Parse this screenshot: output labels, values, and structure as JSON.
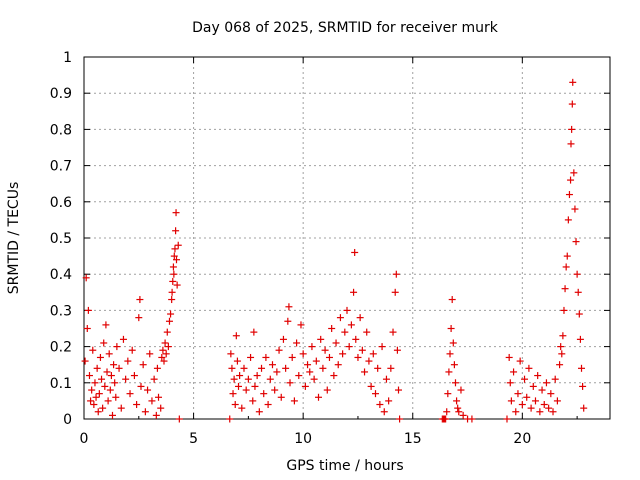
{
  "chart_data": {
    "type": "scatter",
    "title": "Day 068 of 2025, SRMTID for receiver murk",
    "xlabel": "GPS time / hours",
    "ylabel": "SRMTID / TECUs",
    "xlim": [
      0,
      24
    ],
    "ylim": [
      0,
      1
    ],
    "xticks": [
      0,
      5,
      10,
      15,
      20
    ],
    "yticks": [
      0,
      0.1,
      0.2,
      0.3,
      0.4,
      0.5,
      0.6,
      0.7,
      0.8,
      0.9,
      1
    ],
    "grid": true,
    "legend": "none",
    "marker": "plus",
    "color": "#e00000",
    "series": [
      {
        "values": [
          [
            0.05,
            0.16
          ],
          [
            0.1,
            0.39
          ],
          [
            0.15,
            0.25
          ],
          [
            0.2,
            0.3
          ],
          [
            0.25,
            0.12
          ],
          [
            0.3,
            0.05
          ],
          [
            0.35,
            0.08
          ],
          [
            0.4,
            0.19
          ],
          [
            0.45,
            0.04
          ],
          [
            0.5,
            0.1
          ],
          [
            0.55,
            0.06
          ],
          [
            0.6,
            0.14
          ],
          [
            0.65,
            0.02
          ],
          [
            0.7,
            0.07
          ],
          [
            0.75,
            0.17
          ],
          [
            0.8,
            0.11
          ],
          [
            0.85,
            0.03
          ],
          [
            0.9,
            0.21
          ],
          [
            0.95,
            0.09
          ],
          [
            1.0,
            0.26
          ],
          [
            1.05,
            0.13
          ],
          [
            1.1,
            0.05
          ],
          [
            1.15,
            0.18
          ],
          [
            1.2,
            0.08
          ],
          [
            1.25,
            0.12
          ],
          [
            1.3,
            0.01
          ],
          [
            1.35,
            0.15
          ],
          [
            1.4,
            0.1
          ],
          [
            1.45,
            0.06
          ],
          [
            1.5,
            0.2
          ],
          [
            1.6,
            0.14
          ],
          [
            1.7,
            0.03
          ],
          [
            1.8,
            0.22
          ],
          [
            1.9,
            0.11
          ],
          [
            2.0,
            0.16
          ],
          [
            2.1,
            0.07
          ],
          [
            2.2,
            0.19
          ],
          [
            2.3,
            0.12
          ],
          [
            2.4,
            0.04
          ],
          [
            2.5,
            0.28
          ],
          [
            2.55,
            0.33
          ],
          [
            2.6,
            0.09
          ],
          [
            2.7,
            0.15
          ],
          [
            2.8,
            0.02
          ],
          [
            2.9,
            0.08
          ],
          [
            3.0,
            0.18
          ],
          [
            3.1,
            0.05
          ],
          [
            3.2,
            0.11
          ],
          [
            3.3,
            0.01
          ],
          [
            3.35,
            0.14
          ],
          [
            3.4,
            0.06
          ],
          [
            3.5,
            0.03
          ],
          [
            3.55,
            0.17
          ],
          [
            3.6,
            0.19
          ],
          [
            3.65,
            0.16
          ],
          [
            3.7,
            0.21
          ],
          [
            3.75,
            0.18
          ],
          [
            3.8,
            0.24
          ],
          [
            3.85,
            0.2
          ],
          [
            3.9,
            0.27
          ],
          [
            3.95,
            0.29
          ],
          [
            4.0,
            0.33
          ],
          [
            4.02,
            0.35
          ],
          [
            4.05,
            0.38
          ],
          [
            4.08,
            0.42
          ],
          [
            4.1,
            0.4
          ],
          [
            4.12,
            0.45
          ],
          [
            4.15,
            0.47
          ],
          [
            4.18,
            0.52
          ],
          [
            4.2,
            0.57
          ],
          [
            4.22,
            0.44
          ],
          [
            4.25,
            0.37
          ],
          [
            4.3,
            0.48
          ],
          [
            4.35,
            0.0
          ],
          [
            6.65,
            0.0
          ],
          [
            6.7,
            0.18
          ],
          [
            6.75,
            0.14
          ],
          [
            6.8,
            0.07
          ],
          [
            6.85,
            0.11
          ],
          [
            6.9,
            0.04
          ],
          [
            6.95,
            0.23
          ],
          [
            7.0,
            0.16
          ],
          [
            7.05,
            0.09
          ],
          [
            7.1,
            0.12
          ],
          [
            7.2,
            0.03
          ],
          [
            7.3,
            0.14
          ],
          [
            7.4,
            0.08
          ],
          [
            7.5,
            0.11
          ],
          [
            7.6,
            0.17
          ],
          [
            7.7,
            0.05
          ],
          [
            7.75,
            0.24
          ],
          [
            7.8,
            0.09
          ],
          [
            7.9,
            0.12
          ],
          [
            8.0,
            0.02
          ],
          [
            8.1,
            0.14
          ],
          [
            8.2,
            0.07
          ],
          [
            8.3,
            0.17
          ],
          [
            8.4,
            0.04
          ],
          [
            8.5,
            0.11
          ],
          [
            8.6,
            0.15
          ],
          [
            8.7,
            0.08
          ],
          [
            8.8,
            0.13
          ],
          [
            8.9,
            0.19
          ],
          [
            9.0,
            0.06
          ],
          [
            9.1,
            0.22
          ],
          [
            9.2,
            0.14
          ],
          [
            9.3,
            0.27
          ],
          [
            9.35,
            0.31
          ],
          [
            9.4,
            0.1
          ],
          [
            9.5,
            0.17
          ],
          [
            9.6,
            0.05
          ],
          [
            9.7,
            0.21
          ],
          [
            9.8,
            0.12
          ],
          [
            9.9,
            0.26
          ],
          [
            10.0,
            0.18
          ],
          [
            10.1,
            0.09
          ],
          [
            10.2,
            0.15
          ],
          [
            10.3,
            0.13
          ],
          [
            10.4,
            0.2
          ],
          [
            10.5,
            0.11
          ],
          [
            10.6,
            0.16
          ],
          [
            10.7,
            0.06
          ],
          [
            10.8,
            0.22
          ],
          [
            10.9,
            0.14
          ],
          [
            11.0,
            0.19
          ],
          [
            11.1,
            0.08
          ],
          [
            11.2,
            0.17
          ],
          [
            11.3,
            0.25
          ],
          [
            11.4,
            0.12
          ],
          [
            11.5,
            0.21
          ],
          [
            11.6,
            0.15
          ],
          [
            11.7,
            0.28
          ],
          [
            11.8,
            0.18
          ],
          [
            11.9,
            0.24
          ],
          [
            12.0,
            0.3
          ],
          [
            12.1,
            0.2
          ],
          [
            12.2,
            0.26
          ],
          [
            12.3,
            0.35
          ],
          [
            12.35,
            0.46
          ],
          [
            12.4,
            0.22
          ],
          [
            12.5,
            0.17
          ],
          [
            12.6,
            0.28
          ],
          [
            12.7,
            0.19
          ],
          [
            12.8,
            0.13
          ],
          [
            12.9,
            0.24
          ],
          [
            13.0,
            0.16
          ],
          [
            13.1,
            0.09
          ],
          [
            13.2,
            0.18
          ],
          [
            13.3,
            0.07
          ],
          [
            13.4,
            0.14
          ],
          [
            13.5,
            0.04
          ],
          [
            13.6,
            0.2
          ],
          [
            13.7,
            0.02
          ],
          [
            13.8,
            0.11
          ],
          [
            13.9,
            0.05
          ],
          [
            14.0,
            0.14
          ],
          [
            14.1,
            0.24
          ],
          [
            14.2,
            0.35
          ],
          [
            14.25,
            0.4
          ],
          [
            14.3,
            0.19
          ],
          [
            14.35,
            0.08
          ],
          [
            14.4,
            0.0
          ],
          [
            16.35,
            0.0
          ],
          [
            16.4,
            0.0
          ],
          [
            16.45,
            0.0
          ],
          [
            16.5,
            0.0
          ],
          [
            16.55,
            0.02
          ],
          [
            16.6,
            0.07
          ],
          [
            16.65,
            0.13
          ],
          [
            16.7,
            0.18
          ],
          [
            16.75,
            0.25
          ],
          [
            16.8,
            0.33
          ],
          [
            16.85,
            0.21
          ],
          [
            16.9,
            0.15
          ],
          [
            16.95,
            0.1
          ],
          [
            17.0,
            0.05
          ],
          [
            17.05,
            0.03
          ],
          [
            17.1,
            0.02
          ],
          [
            17.2,
            0.08
          ],
          [
            17.3,
            0.01
          ],
          [
            17.5,
            0.0
          ],
          [
            17.7,
            0.0
          ],
          [
            19.3,
            0.0
          ],
          [
            19.4,
            0.17
          ],
          [
            19.45,
            0.1
          ],
          [
            19.5,
            0.05
          ],
          [
            19.6,
            0.13
          ],
          [
            19.7,
            0.02
          ],
          [
            19.8,
            0.07
          ],
          [
            19.9,
            0.16
          ],
          [
            20.0,
            0.04
          ],
          [
            20.1,
            0.11
          ],
          [
            20.2,
            0.06
          ],
          [
            20.3,
            0.14
          ],
          [
            20.4,
            0.03
          ],
          [
            20.5,
            0.09
          ],
          [
            20.6,
            0.05
          ],
          [
            20.7,
            0.12
          ],
          [
            20.8,
            0.02
          ],
          [
            20.9,
            0.08
          ],
          [
            21.0,
            0.04
          ],
          [
            21.1,
            0.1
          ],
          [
            21.2,
            0.03
          ],
          [
            21.3,
            0.07
          ],
          [
            21.4,
            0.02
          ],
          [
            21.5,
            0.11
          ],
          [
            21.6,
            0.05
          ],
          [
            21.7,
            0.15
          ],
          [
            21.75,
            0.2
          ],
          [
            21.8,
            0.18
          ],
          [
            21.85,
            0.23
          ],
          [
            21.9,
            0.3
          ],
          [
            21.95,
            0.36
          ],
          [
            22.0,
            0.42
          ],
          [
            22.05,
            0.45
          ],
          [
            22.1,
            0.55
          ],
          [
            22.15,
            0.62
          ],
          [
            22.2,
            0.66
          ],
          [
            22.22,
            0.76
          ],
          [
            22.25,
            0.8
          ],
          [
            22.28,
            0.87
          ],
          [
            22.3,
            0.93
          ],
          [
            22.35,
            0.68
          ],
          [
            22.4,
            0.58
          ],
          [
            22.45,
            0.49
          ],
          [
            22.5,
            0.4
          ],
          [
            22.55,
            0.35
          ],
          [
            22.6,
            0.29
          ],
          [
            22.65,
            0.22
          ],
          [
            22.7,
            0.14
          ],
          [
            22.75,
            0.09
          ],
          [
            22.8,
            0.03
          ]
        ]
      }
    ]
  }
}
